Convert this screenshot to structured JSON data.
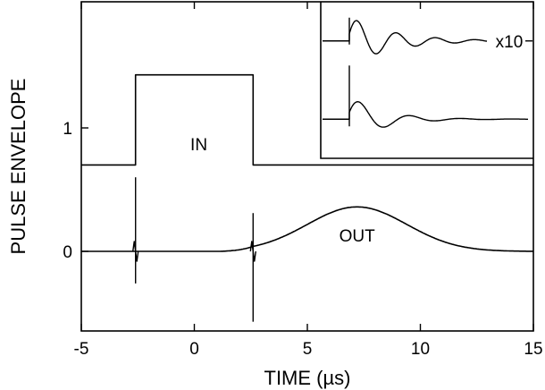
{
  "chart_data": {
    "type": "line",
    "xlabel": "TIME (µs)",
    "ylabel": "PULSE ENVELOPE",
    "xlim": [
      -5,
      15
    ],
    "ylim": [
      -0.7,
      2.0
    ],
    "x_ticks": [
      "-5",
      "0",
      "5",
      "10",
      "15"
    ],
    "y_ticks": [
      "0",
      "1"
    ],
    "y_tick_values": [
      0,
      1
    ],
    "x_tick_values": [
      -5,
      0,
      5,
      10,
      15
    ],
    "annotations": {
      "in_label": "IN",
      "out_label": "OUT",
      "inset_scale_label": "x10"
    },
    "series": [
      {
        "name": "IN",
        "baseline": 0.7,
        "x": [
          -5,
          -2.6,
          -2.6,
          2.6,
          2.6,
          15
        ],
        "y": [
          0.7,
          0.7,
          1.43,
          1.43,
          0.7,
          0.7
        ]
      },
      {
        "name": "OUT",
        "baseline": 0,
        "gaussian": {
          "amplitude": 0.36,
          "center": 7.2,
          "sigma": 2.2,
          "onset": 2.6
        },
        "spikes": [
          {
            "x": -2.6,
            "y_max": 0.6,
            "y_min": -0.26
          },
          {
            "x": 2.6,
            "y_max": 0.31,
            "y_min": -0.57
          }
        ]
      }
    ],
    "inset": {
      "traces": [
        {
          "label": "x10",
          "baseline": 0.75,
          "gain": 10
        },
        {
          "baseline": 0.25,
          "gain": 1
        }
      ]
    }
  }
}
